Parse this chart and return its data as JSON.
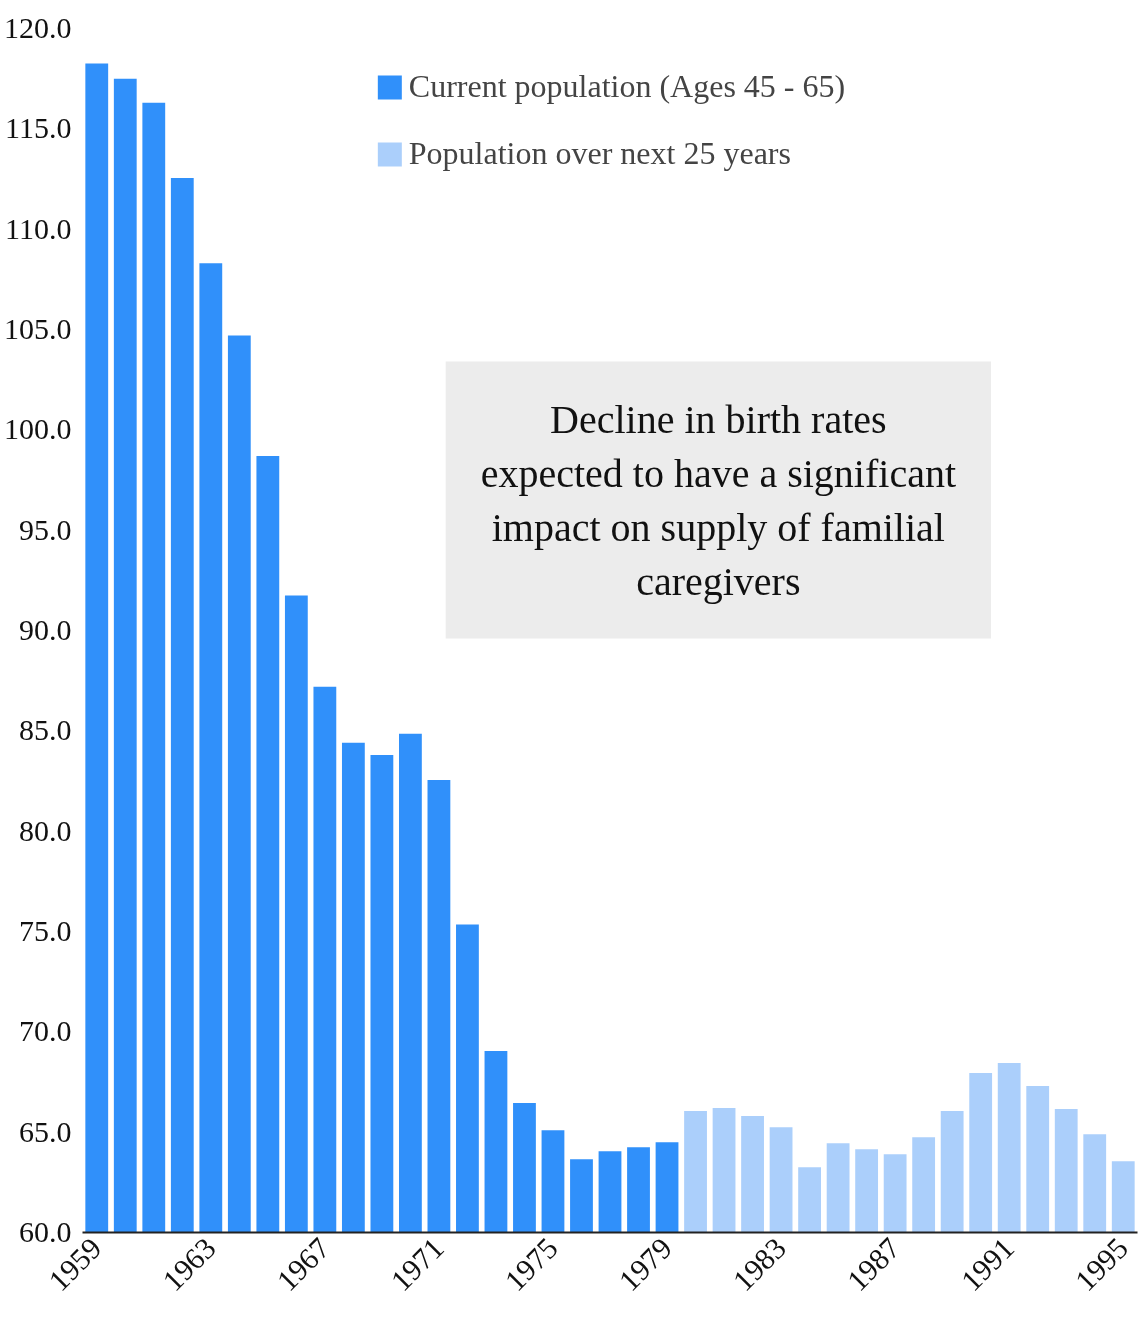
{
  "chart_data": {
    "type": "bar",
    "series": [
      {
        "name": "Current population (Ages 45 - 65)",
        "color": "#3090fa",
        "x": [
          1959,
          1960,
          1961,
          1962,
          1963,
          1964,
          1965,
          1966,
          1967,
          1968,
          1969,
          1970,
          1971,
          1972,
          1973,
          1974,
          1975,
          1976,
          1977,
          1978,
          1979
        ],
        "values": [
          118.25,
          117.5,
          116.3,
          112.55,
          108.3,
          104.7,
          98.7,
          91.75,
          87.2,
          84.4,
          83.8,
          84.85,
          82.55,
          75.35,
          69.05,
          66.45,
          65.1,
          63.65,
          64.05,
          64.25,
          64.5
        ]
      },
      {
        "name": "Population over next 25 years",
        "color": "#abcffb",
        "x": [
          1980,
          1981,
          1982,
          1983,
          1984,
          1985,
          1986,
          1987,
          1988,
          1989,
          1990,
          1991,
          1992,
          1993,
          1994,
          1995
        ],
        "values": [
          66.05,
          66.2,
          65.8,
          65.25,
          63.25,
          64.45,
          64.15,
          63.9,
          64.75,
          66.05,
          67.95,
          68.45,
          67.3,
          66.15,
          64.9,
          63.55
        ]
      }
    ],
    "xlim": [
      1958.5,
      1995.5
    ],
    "xticks": [
      1959,
      1963,
      1967,
      1971,
      1975,
      1979,
      1983,
      1987,
      1991,
      1995
    ],
    "ylim": [
      60,
      120
    ],
    "yticks": [
      {
        "value": 60,
        "label": "60.0"
      },
      {
        "value": 65,
        "label": "65.0"
      },
      {
        "value": 70,
        "label": "70.0"
      },
      {
        "value": 75,
        "label": "75.0"
      },
      {
        "value": 80,
        "label": "80.0"
      },
      {
        "value": 85,
        "label": "85.0"
      },
      {
        "value": 90,
        "label": "90.0"
      },
      {
        "value": 95,
        "label": "95.0"
      },
      {
        "value": 100,
        "label": "100.0"
      },
      {
        "value": 105,
        "label": "105.0"
      },
      {
        "value": 110,
        "label": "110.0"
      },
      {
        "value": 115,
        "label": "115.0"
      },
      {
        "value": 120,
        "label": "120.0"
      }
    ],
    "annotations": [
      "Decline in birth rates expected to have a significant impact on supply of familial caregivers"
    ],
    "legend": "top",
    "grid": false
  }
}
